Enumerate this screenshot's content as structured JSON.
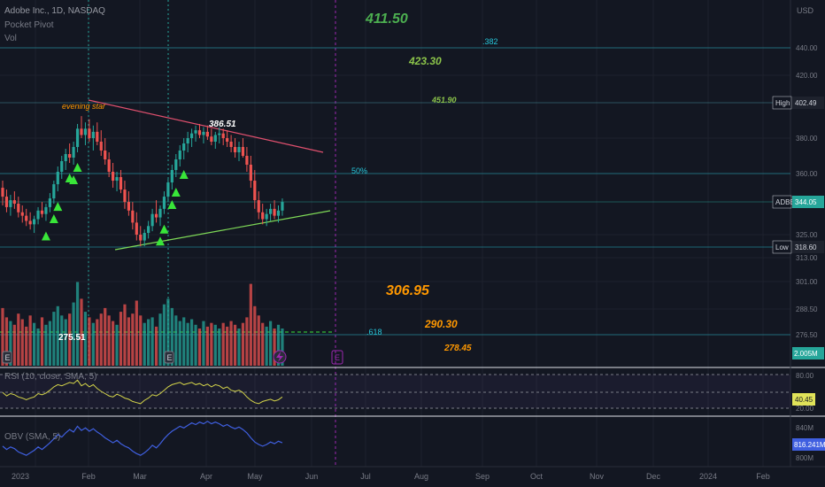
{
  "header": {
    "symbol_line": "Adobe Inc., 1D, NASDAQ",
    "indicator_1": "Pocket Pivot",
    "indicator_2": "Vol",
    "rsi_label": "RSI (10, close, SMA, 5)",
    "obv_label": "OBV (SMA, 5)"
  },
  "price_axis": {
    "currency": "USD",
    "ticks": [
      "440.00",
      "420.00",
      "380.00",
      "360.00",
      "325.00",
      "313.00",
      "301.00",
      "288.50",
      "276.50"
    ],
    "markers": {
      "high": {
        "label": "High",
        "value": "402.49"
      },
      "last": {
        "label": "ADBE",
        "value": "344.05"
      },
      "low": {
        "label": "Low",
        "value": "318.60"
      },
      "volume": {
        "value": "2.005M"
      }
    }
  },
  "rsi_axis": {
    "ticks": [
      "80.00",
      "20.00"
    ],
    "value": "40.45"
  },
  "obv_axis": {
    "ticks": [
      "840M",
      "800M"
    ],
    "value": "816.241M"
  },
  "time_axis": [
    "2023",
    "Feb",
    "Mar",
    "Apr",
    "May",
    "Jun",
    "Jul",
    "Aug",
    "Sep",
    "Oct",
    "Nov",
    "Dec",
    "2024",
    "Feb"
  ],
  "annotations": {
    "evening_star": "evening star",
    "peak": "386.51",
    "volume_level": "275.51",
    "targets": [
      {
        "text": "411.50",
        "color": "#4caf50"
      },
      {
        "text": ".382",
        "color": "#26c6da"
      },
      {
        "text": "423.30",
        "color": "#8bc34a"
      },
      {
        "text": "451.90",
        "color": "#8bc34a"
      },
      {
        "text": "50%",
        "color": "#26c6da"
      },
      {
        "text": "306.95",
        "color": "#ff9800"
      },
      {
        "text": "290.30",
        "color": "#ff9800"
      },
      {
        "text": ".618",
        "color": "#26c6da"
      },
      {
        "text": "278.45",
        "color": "#ff9800"
      }
    ],
    "event_marker": "E"
  },
  "colors": {
    "up": "#26a69a",
    "down": "#ef5350",
    "signal": "#39e639",
    "resistance": "#e0506e",
    "support": "#7ed957",
    "rsi": "#d4d44a",
    "obv": "#3f5fe0",
    "earnings": "#9c27b0"
  },
  "chart_data": [
    {
      "type": "candlestick",
      "title": "Adobe Inc., 1D, NASDAQ",
      "x_start": "2023-01-02",
      "ohlc": [
        [
          352,
          356,
          342,
          347
        ],
        [
          347,
          351,
          338,
          341
        ],
        [
          341,
          348,
          336,
          345
        ],
        [
          345,
          350,
          340,
          343
        ],
        [
          343,
          347,
          335,
          338
        ],
        [
          338,
          342,
          332,
          336
        ],
        [
          336,
          340,
          330,
          333
        ],
        [
          333,
          338,
          328,
          331
        ],
        [
          331,
          336,
          326,
          334
        ],
        [
          334,
          341,
          331,
          339
        ],
        [
          339,
          344,
          335,
          337
        ],
        [
          337,
          343,
          333,
          341
        ],
        [
          341,
          349,
          338,
          346
        ],
        [
          346,
          356,
          343,
          354
        ],
        [
          354,
          364,
          350,
          361
        ],
        [
          361,
          370,
          357,
          367
        ],
        [
          367,
          374,
          362,
          371
        ],
        [
          371,
          377,
          366,
          369
        ],
        [
          369,
          378,
          365,
          375
        ],
        [
          375,
          389,
          372,
          386
        ],
        [
          386,
          394,
          380,
          382
        ],
        [
          382,
          390,
          376,
          386
        ],
        [
          386,
          392,
          378,
          380
        ],
        [
          380,
          388,
          373,
          384
        ],
        [
          384,
          390,
          376,
          378
        ],
        [
          378,
          385,
          370,
          373
        ],
        [
          373,
          380,
          365,
          368
        ],
        [
          368,
          372,
          358,
          361
        ],
        [
          361,
          366,
          352,
          356
        ],
        [
          356,
          361,
          350,
          358
        ],
        [
          358,
          362,
          349,
          351
        ],
        [
          351,
          356,
          340,
          344
        ],
        [
          344,
          350,
          336,
          339
        ],
        [
          339,
          344,
          328,
          332
        ],
        [
          332,
          338,
          322,
          325
        ],
        [
          325,
          330,
          319,
          322
        ],
        [
          322,
          328,
          319,
          326
        ],
        [
          326,
          333,
          323,
          330
        ],
        [
          330,
          340,
          327,
          337
        ],
        [
          337,
          345,
          332,
          335
        ],
        [
          335,
          342,
          330,
          340
        ],
        [
          340,
          350,
          337,
          347
        ],
        [
          347,
          357,
          344,
          355
        ],
        [
          355,
          365,
          351,
          362
        ],
        [
          362,
          371,
          358,
          368
        ],
        [
          368,
          376,
          364,
          373
        ],
        [
          373,
          380,
          368,
          377
        ],
        [
          377,
          384,
          372,
          380
        ],
        [
          380,
          386,
          375,
          383
        ],
        [
          383,
          388,
          378,
          385
        ],
        [
          385,
          389,
          380,
          382
        ],
        [
          382,
          387,
          377,
          384
        ],
        [
          384,
          388,
          379,
          381
        ],
        [
          381,
          386,
          376,
          378
        ],
        [
          378,
          384,
          374,
          382
        ],
        [
          382,
          387,
          377,
          383
        ],
        [
          383,
          386,
          376,
          380
        ],
        [
          380,
          385,
          375,
          378
        ],
        [
          378,
          382,
          372,
          375
        ],
        [
          375,
          380,
          369,
          372
        ],
        [
          372,
          378,
          367,
          375
        ],
        [
          375,
          380,
          369,
          370
        ],
        [
          370,
          375,
          361,
          365
        ],
        [
          365,
          370,
          352,
          356
        ],
        [
          356,
          362,
          340,
          345
        ],
        [
          345,
          350,
          334,
          338
        ],
        [
          338,
          343,
          331,
          334
        ],
        [
          334,
          340,
          330,
          337
        ],
        [
          337,
          343,
          333,
          340
        ],
        [
          340,
          345,
          334,
          336
        ],
        [
          336,
          342,
          332,
          339
        ],
        [
          339,
          346,
          336,
          344
        ]
      ],
      "volume_million": [
        3.1,
        2.6,
        2.4,
        2.2,
        2.8,
        2.5,
        2.1,
        2.7,
        2.3,
        2.0,
        2.6,
        2.2,
        2.4,
        2.9,
        3.2,
        2.7,
        2.5,
        2.8,
        3.4,
        4.5,
        3.6,
        2.9,
        2.6,
        2.3,
        2.5,
        2.8,
        3.1,
        2.7,
        2.4,
        2.2,
        2.9,
        3.3,
        2.6,
        2.8,
        3.5,
        2.7,
        2.3,
        2.5,
        2.6,
        2.1,
        2.8,
        3.3,
        3.6,
        3.1,
        2.7,
        2.4,
        2.6,
        2.3,
        2.5,
        2.2,
        2.0,
        2.4,
        2.1,
        2.3,
        2.2,
        2.0,
        2.3,
        2.1,
        2.4,
        2.2,
        2.0,
        2.3,
        2.6,
        4.4,
        3.2,
        2.7,
        2.3,
        2.1,
        2.4,
        2.0,
        2.2,
        2.0
      ],
      "rsi": [
        48,
        42,
        46,
        44,
        40,
        38,
        35,
        38,
        40,
        46,
        44,
        47,
        52,
        58,
        62,
        60,
        63,
        66,
        64,
        70,
        60,
        64,
        58,
        62,
        55,
        50,
        46,
        42,
        40,
        45,
        42,
        38,
        36,
        32,
        30,
        28,
        34,
        38,
        44,
        42,
        46,
        52,
        58,
        62,
        64,
        66,
        62,
        64,
        66,
        62,
        64,
        60,
        63,
        58,
        62,
        60,
        55,
        58,
        52,
        50,
        52,
        48,
        40,
        34,
        30,
        28,
        32,
        34,
        36,
        33,
        35,
        40
      ],
      "obv_million": [
        812,
        808,
        811,
        809,
        805,
        803,
        801,
        804,
        807,
        811,
        808,
        812,
        816,
        821,
        826,
        823,
        828,
        832,
        829,
        836,
        831,
        834,
        830,
        833,
        829,
        826,
        822,
        819,
        816,
        819,
        815,
        812,
        810,
        806,
        803,
        801,
        804,
        808,
        813,
        810,
        815,
        821,
        826,
        830,
        833,
        836,
        834,
        837,
        840,
        838,
        841,
        839,
        842,
        839,
        841,
        839,
        836,
        838,
        835,
        833,
        835,
        832,
        828,
        822,
        817,
        814,
        812,
        814,
        817,
        815,
        818,
        816
      ],
      "series": [
        {
          "name": "RSI (10, close, SMA, 5)",
          "last": 40.45
        },
        {
          "name": "OBV (SMA, 5)",
          "last": 816.241
        }
      ],
      "pocket_pivot_signals": [
        11,
        13,
        14,
        17,
        18,
        19,
        40,
        41,
        43,
        44,
        46
      ],
      "ylim": [
        270,
        452
      ]
    }
  ]
}
